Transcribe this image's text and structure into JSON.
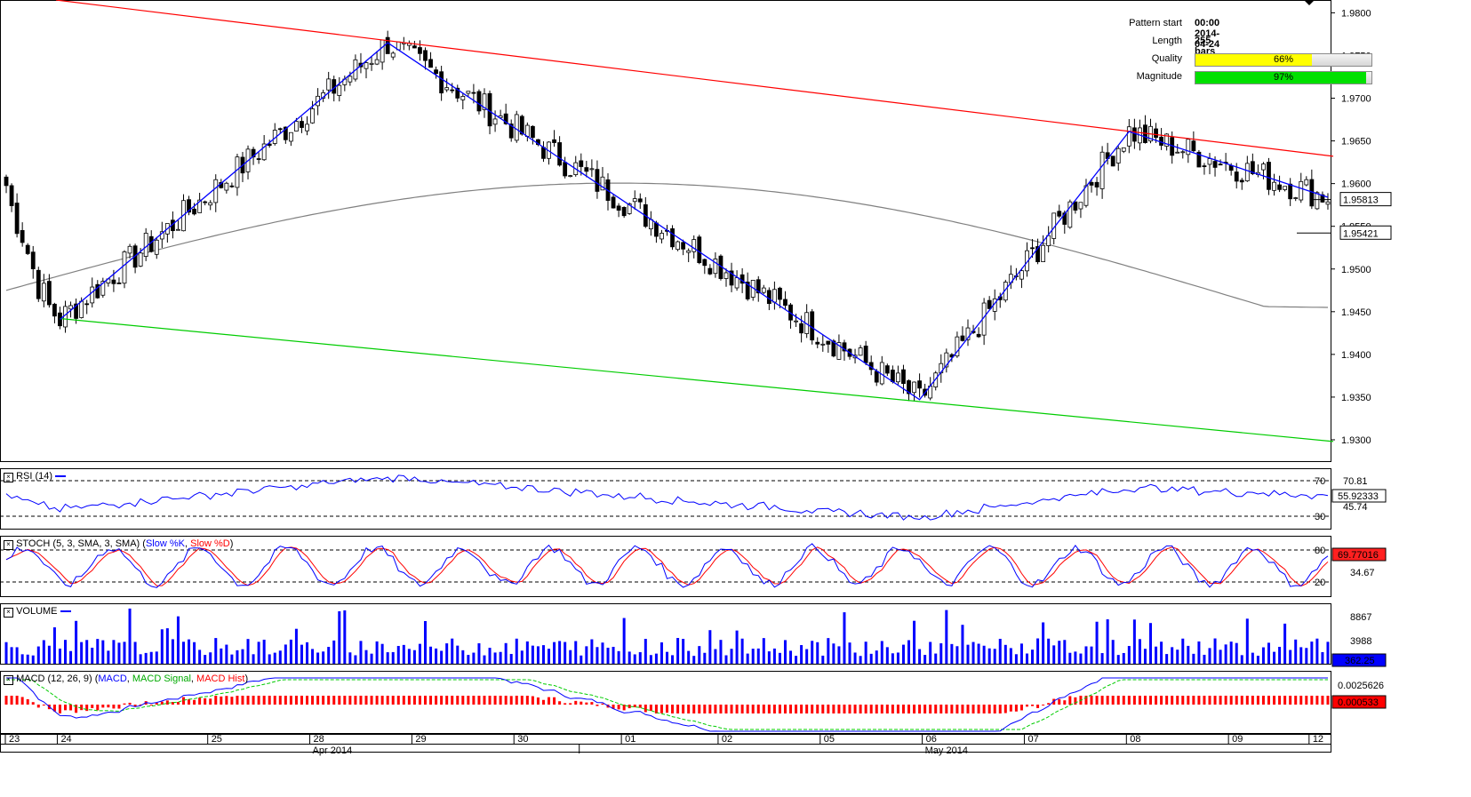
{
  "info_panel": {
    "pattern_start_label": "Pattern start",
    "pattern_start_value": "00:00 2014-04-24",
    "length_label": "Length",
    "length_value": "255 bars",
    "quality_label": "Quality",
    "quality_value": "66%",
    "quality_pct": 66,
    "quality_color": "#ffff00",
    "magnitude_label": "Magnitude",
    "magnitude_value": "97%",
    "magnitude_pct": 97,
    "magnitude_color": "#00e000"
  },
  "panels": {
    "rsi": {
      "title": "RSI (14)",
      "levels": [
        "70",
        "30"
      ],
      "ticks": [
        "70.81",
        "45.74"
      ],
      "current": "55.92333"
    },
    "stoch": {
      "title_prefix": "STOCH (5, 3, SMA, 3, SMA) (",
      "k_label": "Slow %K",
      "sep": ", ",
      "d_label": "Slow %D",
      "title_suffix": ")",
      "levels": [
        "80",
        "20"
      ],
      "ticks": [
        "34.67"
      ],
      "current": "69.77016"
    },
    "volume": {
      "title": "VOLUME",
      "ticks": [
        "8867",
        "3988"
      ],
      "current": "362.25"
    },
    "macd": {
      "title_prefix": "MACD (12, 26, 9) (",
      "macd_label": "MACD",
      "signal_label": "MACD Signal",
      "hist_label": "MACD Hist",
      "sep": ", ",
      "title_suffix": ")",
      "ticks": [
        "0.0025626"
      ],
      "current": "0.000533"
    }
  },
  "colors": {
    "candle_up": "#000000",
    "candle_down": "#000000",
    "resistance": "#ff0000",
    "support": "#00cc00",
    "zigzag": "#0000ff",
    "sma": "#808080",
    "rsi": "#0000ff",
    "stoch_k": "#0000ff",
    "stoch_d": "#ff0000",
    "volume": "#0000ff",
    "macd": "#0000ff",
    "macd_signal": "#00cc00",
    "macd_hist": "#ff0000"
  },
  "chart_data": {
    "type": "candlestick",
    "price_axis_ticks": [
      "1.9800",
      "1.9750",
      "1.9700",
      "1.9650",
      "1.9600",
      "1.9550",
      "1.9500",
      "1.9450",
      "1.9400",
      "1.9350",
      "1.9300"
    ],
    "price_axis_values": [
      1.98,
      1.975,
      1.97,
      1.965,
      1.96,
      1.955,
      1.95,
      1.945,
      1.94,
      1.935,
      1.93
    ],
    "ylim": [
      1.9275,
      1.9815
    ],
    "current_price": "1.95813",
    "current_price_value": 1.95813,
    "sma_last": "1.95421",
    "sma_last_value": 1.95421,
    "x_tick_labels": [
      "23",
      "24",
      "25",
      "28",
      "29",
      "30",
      "01",
      "02",
      "05",
      "06",
      "07",
      "08",
      "09",
      "12"
    ],
    "month_labels": [
      "Apr 2014",
      "May 2014"
    ],
    "resistance_line": {
      "from": [
        0,
        1.9815
      ],
      "to": [
        247,
        1.9632
      ]
    },
    "support_line": {
      "from": [
        10,
        1.9442
      ],
      "to": [
        247,
        1.9298
      ]
    },
    "zigzag": [
      [
        10,
        1.9441
      ],
      [
        71,
        1.9765
      ],
      [
        170,
        1.9347
      ],
      [
        209,
        1.9661
      ],
      [
        246,
        1.9584
      ]
    ],
    "pattern_length_bars": 255,
    "bar_count": 247
  }
}
